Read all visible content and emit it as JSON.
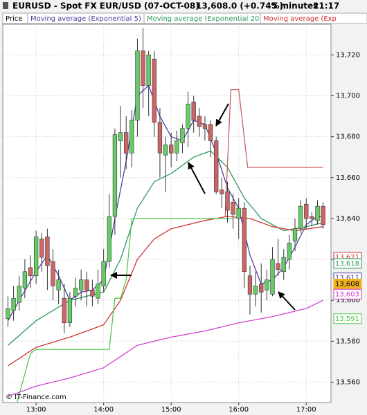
{
  "chart_data": {
    "type": "candlestick",
    "title": "EURUSD - Spot FX EUR/USD (07-OCT-08)",
    "last_price": "13,608.0 (+0.74%)",
    "interval": "5 minutes",
    "time": "21:17",
    "credit": "© IT-Finance.com",
    "xlim": [
      751,
      1042
    ],
    "ylim": [
      13550,
      13735
    ],
    "xticks": [
      {
        "value": 780,
        "label": "13:00"
      },
      {
        "value": 840,
        "label": "14:00"
      },
      {
        "value": 900,
        "label": "15:00"
      },
      {
        "value": 960,
        "label": "16:00"
      },
      {
        "value": 1020,
        "label": "17:00"
      }
    ],
    "yticks": [
      {
        "value": 13560,
        "label": "13,560"
      },
      {
        "value": 13580,
        "label": "13,580"
      },
      {
        "value": 13600,
        "label": "13,600"
      },
      {
        "value": 13620,
        "label": "13,620"
      },
      {
        "value": 13640,
        "label": "13,640"
      },
      {
        "value": 13660,
        "label": "13,660"
      },
      {
        "value": 13680,
        "label": "13,680"
      },
      {
        "value": 13700,
        "label": "13,700"
      },
      {
        "value": 13720,
        "label": "13,720"
      }
    ],
    "grid": true,
    "series": [
      {
        "name": "Price",
        "color": "#000000",
        "up_color": "#66cc66",
        "down_color": "#cc6666",
        "x": [
          755,
          760,
          765,
          770,
          775,
          780,
          785,
          790,
          795,
          800,
          805,
          810,
          815,
          820,
          825,
          830,
          835,
          840,
          845,
          850,
          855,
          860,
          865,
          870,
          875,
          880,
          885,
          890,
          895,
          900,
          905,
          910,
          915,
          920,
          925,
          930,
          935,
          940,
          945,
          950,
          955,
          960,
          965,
          970,
          975,
          980,
          985,
          990,
          995,
          1000,
          1005,
          1010,
          1015,
          1020,
          1025,
          1030,
          1035
        ],
        "open": [
          13591,
          13595,
          13599,
          13606,
          13616,
          13612,
          13630,
          13631,
          13619,
          13605,
          13601,
          13589,
          13602,
          13605,
          13610,
          13605,
          13601,
          13607,
          13619,
          13641,
          13678,
          13682,
          13672,
          13688,
          13722,
          13705,
          13718,
          13687,
          13671,
          13676,
          13672,
          13677,
          13684,
          13697,
          13690,
          13686,
          13686,
          13678,
          13654,
          13653,
          13648,
          13640,
          13645,
          13612,
          13603,
          13608,
          13605,
          13603,
          13618,
          13614,
          13620,
          13629,
          13635,
          13647,
          13641,
          13639,
          13646
        ],
        "high": [
          13602,
          13607,
          13612,
          13620,
          13622,
          13634,
          13633,
          13635,
          13625,
          13615,
          13608,
          13604,
          13611,
          13615,
          13614,
          13610,
          13615,
          13625,
          13652,
          13684,
          13695,
          13690,
          13693,
          13728,
          13733,
          13722,
          13722,
          13694,
          13680,
          13682,
          13683,
          13686,
          13702,
          13700,
          13694,
          13690,
          13688,
          13680,
          13660,
          13658,
          13652,
          13650,
          13648,
          13617,
          13614,
          13618,
          13615,
          13626,
          13630,
          13625,
          13632,
          13640,
          13649,
          13650,
          13643,
          13649,
          13648
        ],
        "low": [
          13587,
          13590,
          13595,
          13601,
          13606,
          13608,
          13614,
          13605,
          13600,
          13598,
          13584,
          13587,
          13597,
          13600,
          13597,
          13597,
          13598,
          13604,
          13616,
          13632,
          13660,
          13664,
          13665,
          13680,
          13694,
          13690,
          13680,
          13660,
          13653,
          13665,
          13668,
          13672,
          13675,
          13682,
          13680,
          13678,
          13670,
          13652,
          13645,
          13638,
          13635,
          13630,
          13606,
          13593,
          13597,
          13594,
          13600,
          13602,
          13612,
          13610,
          13615,
          13624,
          13633,
          13635,
          13636,
          13637,
          13635
        ],
        "close": [
          13596,
          13601,
          13607,
          13614,
          13612,
          13631,
          13621,
          13617,
          13607,
          13610,
          13589,
          13601,
          13606,
          13610,
          13605,
          13602,
          13608,
          13619,
          13641,
          13681,
          13682,
          13672,
          13688,
          13722,
          13705,
          13720,
          13687,
          13672,
          13676,
          13672,
          13678,
          13684,
          13696,
          13688,
          13685,
          13684,
          13678,
          13653,
          13652,
          13644,
          13642,
          13645,
          13614,
          13603,
          13607,
          13604,
          13610,
          13620,
          13615,
          13621,
          13628,
          13635,
          13646,
          13640,
          13640,
          13646,
          13637
        ]
      },
      {
        "name": "Moving average (Exponential 5)",
        "color": "#4a3fa0",
        "x": [
          755,
          765,
          780,
          790,
          800,
          810,
          820,
          830,
          840,
          850,
          860,
          870,
          880,
          890,
          900,
          910,
          920,
          930,
          940,
          950,
          960,
          970,
          980,
          990,
          1000,
          1010,
          1020,
          1030,
          1035
        ],
        "values": [
          13590,
          13600,
          13614,
          13622,
          13612,
          13600,
          13604,
          13605,
          13610,
          13640,
          13668,
          13700,
          13705,
          13690,
          13680,
          13678,
          13688,
          13686,
          13672,
          13655,
          13645,
          13622,
          13608,
          13610,
          13616,
          13626,
          13637,
          13641,
          13641
        ]
      },
      {
        "name": "Moving average (Exponential 20)",
        "color": "#2a9a5a",
        "x": [
          755,
          780,
          810,
          840,
          855,
          870,
          885,
          900,
          920,
          935,
          950,
          965,
          980,
          1000,
          1020,
          1035
        ],
        "values": [
          13578,
          13590,
          13600,
          13604,
          13620,
          13645,
          13658,
          13662,
          13670,
          13673,
          13665,
          13650,
          13640,
          13634,
          13636,
          13638
        ]
      },
      {
        "name": "Moving average (Exp",
        "color": "#d03030",
        "x": [
          755,
          780,
          810,
          840,
          855,
          870,
          885,
          900,
          930,
          950,
          970,
          990,
          1010,
          1035
        ],
        "values": [
          13568,
          13577,
          13582,
          13588,
          13600,
          13620,
          13630,
          13635,
          13639,
          13641,
          13640,
          13636,
          13634,
          13636
        ]
      },
      {
        "color": "#d040d0",
        "x": [
          755,
          780,
          810,
          840,
          870,
          900,
          930,
          960,
          990,
          1020,
          1035
        ],
        "values": [
          13553,
          13558,
          13562,
          13567,
          13578,
          13582,
          13585,
          13589,
          13592,
          13596,
          13600
        ]
      },
      {
        "color": "#50c850",
        "x": [
          763,
          775,
          780,
          845,
          850,
          855,
          860,
          865,
          955
        ],
        "values": [
          13550,
          13574,
          13576,
          13576,
          13601,
          13601,
          13610,
          13640,
          13640
        ]
      },
      {
        "color": "#c86060",
        "x": [
          948,
          953,
          960,
          968,
          1035
        ],
        "values": [
          13641,
          13703,
          13703,
          13665,
          13665
        ]
      }
    ],
    "price_markers": [
      {
        "value": 13621,
        "label": "13,621",
        "color": "#d03030"
      },
      {
        "value": 13618,
        "label": "13,618",
        "color": "#2a9a5a"
      },
      {
        "value": 13611,
        "label": "13,611",
        "color": "#4a3fa0"
      },
      {
        "value": 13608,
        "label": "13,608",
        "color": "#f0b020"
      },
      {
        "value": 13603,
        "label": "13,603",
        "color": "#d040d0"
      },
      {
        "value": 13591,
        "label": "13,591",
        "color": "#50c850"
      }
    ]
  }
}
